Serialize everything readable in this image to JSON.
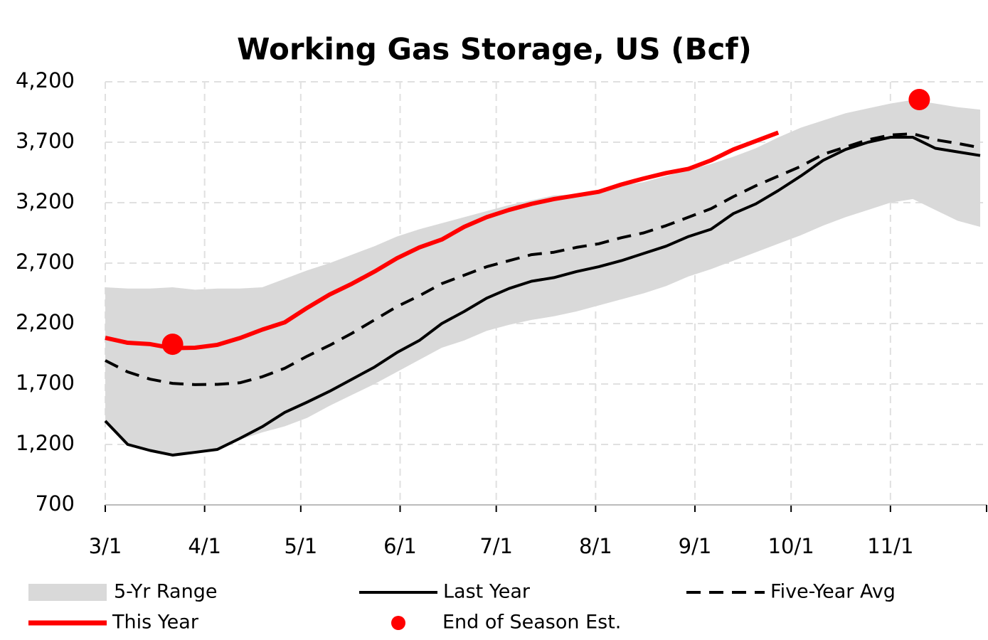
{
  "chart_data": {
    "type": "line",
    "title": "Working Gas Storage, US (Bcf)",
    "x": [
      "3/1",
      "3/8",
      "3/15",
      "3/22",
      "3/29",
      "4/5",
      "4/12",
      "4/19",
      "4/26",
      "5/3",
      "5/10",
      "5/17",
      "5/24",
      "5/31",
      "6/7",
      "6/14",
      "6/21",
      "6/28",
      "7/5",
      "7/12",
      "7/19",
      "7/26",
      "8/2",
      "8/9",
      "8/16",
      "8/23",
      "8/30",
      "9/6",
      "9/13",
      "9/20",
      "9/27",
      "10/4",
      "10/11",
      "10/18",
      "10/25",
      "11/1",
      "11/8",
      "11/15",
      "11/22",
      "11/29"
    ],
    "xlim": [
      "3/1",
      "12/1"
    ],
    "xticks": [
      "3/1",
      "4/1",
      "5/1",
      "6/1",
      "7/1",
      "8/1",
      "9/1",
      "10/1",
      "11/1"
    ],
    "ylim": [
      700,
      4200
    ],
    "yticks": [
      {
        "value": 700,
        "label": "700"
      },
      {
        "value": 1200,
        "label": "1,200"
      },
      {
        "value": 1700,
        "label": "1,700"
      },
      {
        "value": 2200,
        "label": "2,200"
      },
      {
        "value": 2700,
        "label": "2,700"
      },
      {
        "value": 3200,
        "label": "3,200"
      },
      {
        "value": 3700,
        "label": "3,700"
      },
      {
        "value": 4200,
        "label": "4,200"
      }
    ],
    "grid": true,
    "series": [
      {
        "name": "5-Yr Range",
        "style": "band",
        "color": "#d9d9d9",
        "low": [
          1394,
          1200,
          1150,
          1112,
          1135,
          1159,
          1240,
          1300,
          1350,
          1420,
          1520,
          1610,
          1700,
          1800,
          1900,
          2000,
          2060,
          2140,
          2190,
          2230,
          2260,
          2300,
          2350,
          2400,
          2450,
          2510,
          2590,
          2650,
          2720,
          2790,
          2860,
          2930,
          3010,
          3080,
          3140,
          3200,
          3230,
          3140,
          3050,
          3000
        ],
        "values": [
          2500,
          2490,
          2490,
          2500,
          2480,
          2490,
          2490,
          2500,
          2570,
          2640,
          2700,
          2770,
          2840,
          2920,
          2980,
          3030,
          3080,
          3130,
          3180,
          3220,
          3260,
          3270,
          3300,
          3340,
          3370,
          3420,
          3470,
          3520,
          3580,
          3650,
          3740,
          3820,
          3880,
          3940,
          3980,
          4020,
          4050,
          4020,
          3990,
          3970
        ]
      },
      {
        "name": "Last Year",
        "style": "line",
        "color": "#000000",
        "values": [
          1394,
          1200,
          1150,
          1112,
          1135,
          1159,
          1250,
          1347,
          1465,
          1550,
          1640,
          1740,
          1840,
          1960,
          2060,
          2200,
          2300,
          2410,
          2490,
          2550,
          2580,
          2630,
          2670,
          2720,
          2780,
          2840,
          2920,
          2980,
          3110,
          3190,
          3300,
          3420,
          3550,
          3640,
          3700,
          3741,
          3741,
          3650,
          3620,
          3590
        ]
      },
      {
        "name": "Five-Year Avg",
        "style": "dashed",
        "color": "#000000",
        "values": [
          1894,
          1800,
          1740,
          1705,
          1695,
          1697,
          1710,
          1760,
          1830,
          1930,
          2020,
          2120,
          2230,
          2340,
          2430,
          2530,
          2600,
          2670,
          2720,
          2770,
          2790,
          2830,
          2860,
          2910,
          2950,
          3010,
          3080,
          3150,
          3250,
          3340,
          3420,
          3500,
          3600,
          3660,
          3720,
          3760,
          3770,
          3720,
          3690,
          3655
        ]
      },
      {
        "name": "This Year",
        "style": "line",
        "color": "#ff0000",
        "values": [
          2082,
          2041,
          2030,
          1996,
          2000,
          2024,
          2080,
          2150,
          2210,
          2330,
          2440,
          2530,
          2630,
          2740,
          2830,
          2895,
          3000,
          3080,
          3140,
          3190,
          3230,
          3260,
          3290,
          3350,
          3400,
          3445,
          3480,
          3550,
          3640,
          3710,
          3780,
          null,
          null,
          null,
          null,
          null,
          null,
          null,
          null,
          null
        ]
      },
      {
        "name": "End of Season Est.",
        "style": "dot",
        "color": "#ff0000",
        "x": [
          "3/22",
          "11/10"
        ],
        "values": [
          2029,
          4053
        ]
      }
    ]
  }
}
